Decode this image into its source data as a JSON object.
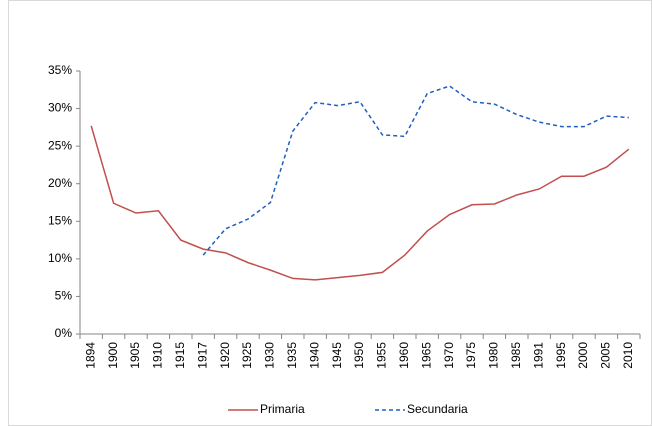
{
  "chart_data": {
    "type": "line",
    "categories": [
      "1894",
      "1900",
      "1905",
      "1910",
      "1915",
      "1917",
      "1920",
      "1925",
      "1930",
      "1935",
      "1940",
      "1945",
      "1950",
      "1955",
      "1960",
      "1965",
      "1970",
      "1975",
      "1980",
      "1985",
      "1991",
      "1995",
      "2000",
      "2005",
      "2010"
    ],
    "series": [
      {
        "name": "Primaria",
        "color": "#c0504d",
        "dash": "solid",
        "values": [
          27.7,
          17.4,
          16.1,
          16.4,
          12.5,
          11.3,
          10.8,
          9.5,
          8.5,
          7.4,
          7.2,
          7.5,
          7.8,
          8.2,
          10.5,
          13.7,
          15.9,
          17.2,
          17.3,
          18.5,
          19.3,
          21.0,
          21.0,
          22.2,
          24.6
        ]
      },
      {
        "name": "Secundaria",
        "color": "#1f5fbf",
        "dash": "dashed",
        "values": [
          null,
          null,
          null,
          null,
          null,
          10.5,
          14.0,
          15.3,
          17.5,
          27.0,
          30.8,
          30.4,
          30.9,
          26.5,
          26.3,
          32.0,
          33.0,
          30.9,
          30.6,
          29.2,
          28.2,
          27.6,
          27.6,
          29.0,
          28.8
        ]
      }
    ],
    "ylim": [
      0,
      35
    ],
    "yticks": [
      {
        "value": 0,
        "label": "0%"
      },
      {
        "value": 5,
        "label": "5%"
      },
      {
        "value": 10,
        "label": "10%"
      },
      {
        "value": 15,
        "label": "15%"
      },
      {
        "value": 20,
        "label": "20%"
      },
      {
        "value": 25,
        "label": "25%"
      },
      {
        "value": 30,
        "label": "30%"
      },
      {
        "value": 35,
        "label": "35%"
      }
    ],
    "grid": false,
    "legend": "bottom"
  }
}
